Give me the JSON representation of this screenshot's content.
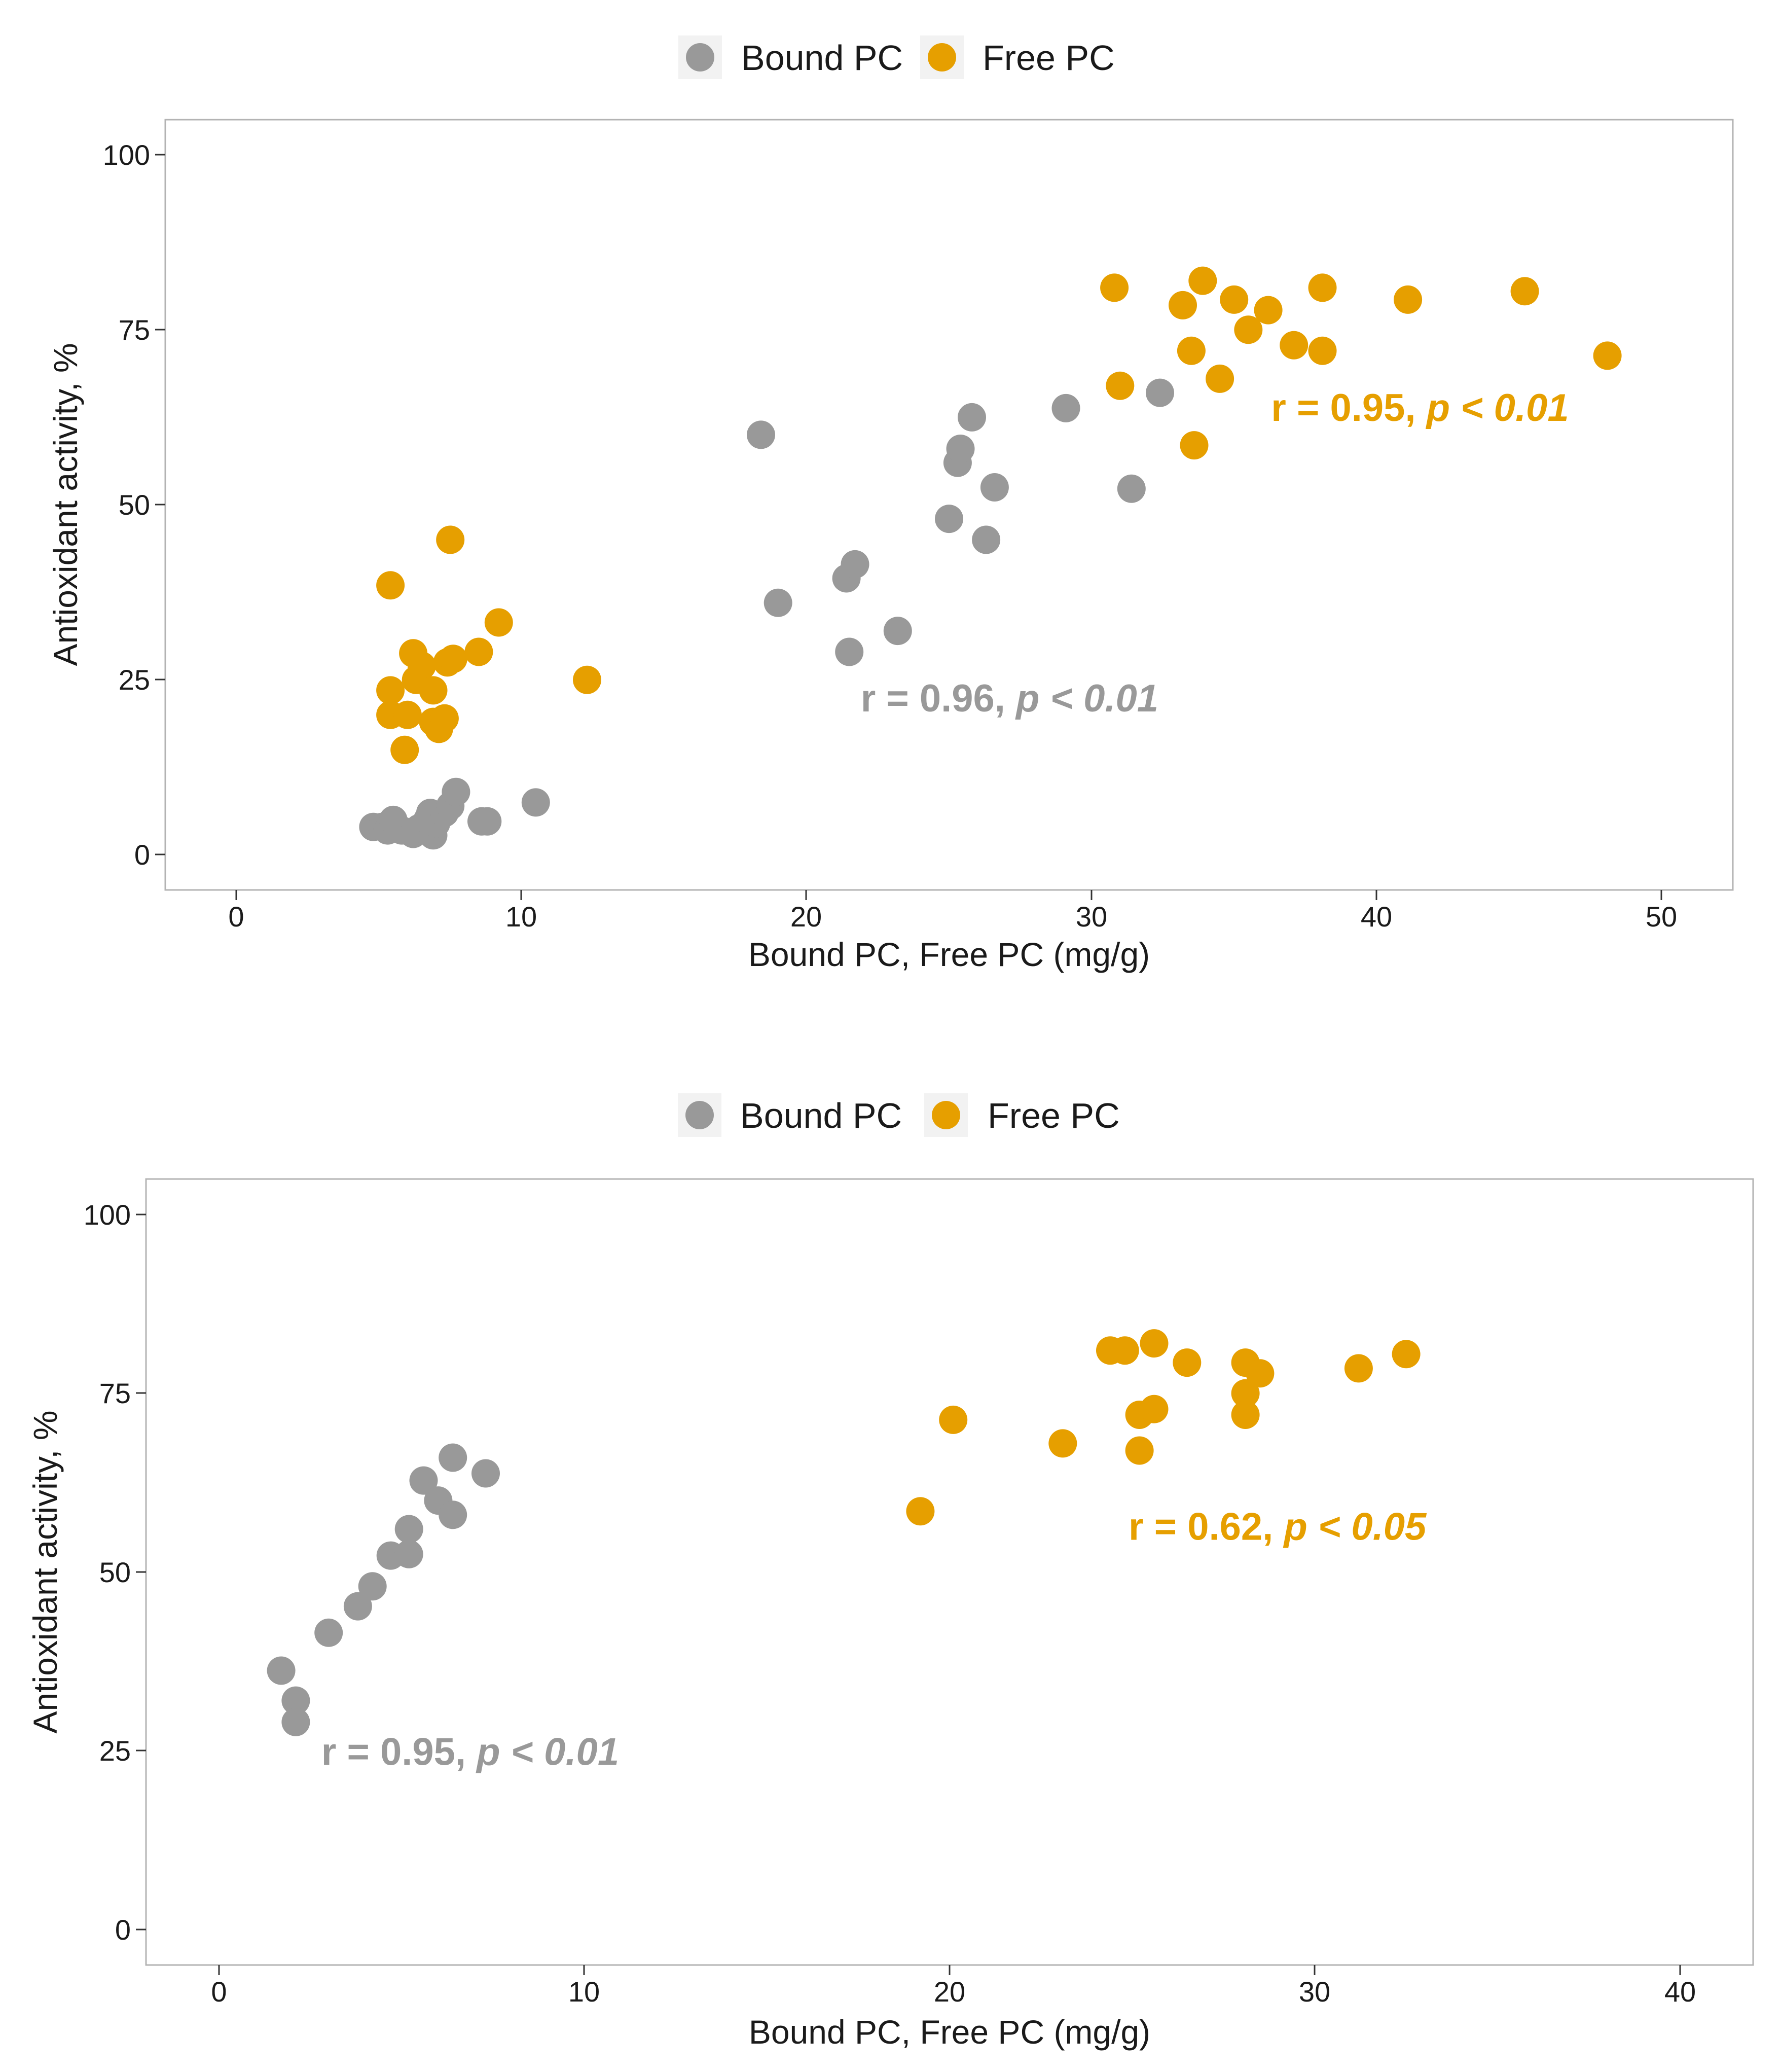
{
  "chart_data": [
    {
      "type": "scatter",
      "title": "",
      "xlabel": "Bound PC, Free PC (mg/g)",
      "ylabel": "Antioxidant activity, %",
      "xlim": [
        -2.5,
        52.5
      ],
      "ylim": [
        -5,
        105
      ],
      "x_ticks": [
        0,
        10,
        20,
        30,
        40,
        50
      ],
      "y_ticks": [
        0,
        25,
        50,
        75,
        100
      ],
      "grid": false,
      "legend": {
        "position": "top",
        "entries": [
          "Bound PC",
          "Free PC"
        ]
      },
      "series": [
        {
          "name": "Bound PC",
          "color": "#999999",
          "points": [
            [
              4.8,
              4.0
            ],
            [
              5.1,
              4.0
            ],
            [
              5.3,
              3.5
            ],
            [
              5.5,
              5.0
            ],
            [
              5.8,
              3.5
            ],
            [
              6.2,
              3.0
            ],
            [
              6.4,
              3.8
            ],
            [
              6.7,
              5.0
            ],
            [
              6.8,
              6.0
            ],
            [
              6.9,
              2.8
            ],
            [
              7.0,
              4.5
            ],
            [
              7.3,
              6.0
            ],
            [
              7.5,
              7.0
            ],
            [
              7.7,
              9.0
            ],
            [
              8.6,
              4.8
            ],
            [
              8.8,
              4.8
            ],
            [
              10.5,
              7.5
            ],
            [
              18.4,
              60.0
            ],
            [
              19.0,
              36.0
            ],
            [
              21.4,
              39.5
            ],
            [
              21.5,
              29.0
            ],
            [
              21.7,
              41.5
            ],
            [
              23.2,
              32.0
            ],
            [
              25.0,
              48.0
            ],
            [
              25.3,
              56.0
            ],
            [
              25.4,
              58.0
            ],
            [
              25.8,
              62.5
            ],
            [
              26.3,
              45.0
            ],
            [
              26.6,
              52.5
            ],
            [
              29.1,
              63.8
            ],
            [
              31.4,
              52.3
            ],
            [
              32.4,
              66.0
            ]
          ]
        },
        {
          "name": "Free PC",
          "color": "#E69F00",
          "points": [
            [
              5.4,
              38.5
            ],
            [
              5.4,
              23.5
            ],
            [
              5.4,
              20.0
            ],
            [
              6.0,
              20.0
            ],
            [
              6.2,
              28.8
            ],
            [
              6.3,
              25.0
            ],
            [
              6.5,
              27.0
            ],
            [
              6.9,
              23.5
            ],
            [
              6.9,
              19.0
            ],
            [
              7.1,
              18.0
            ],
            [
              7.3,
              19.5
            ],
            [
              7.4,
              27.5
            ],
            [
              7.6,
              28.0
            ],
            [
              7.5,
              45.0
            ],
            [
              5.9,
              15.0
            ],
            [
              8.5,
              29.0
            ],
            [
              9.2,
              33.2
            ],
            [
              12.3,
              25.0
            ],
            [
              30.8,
              81.0
            ],
            [
              31.0,
              67.0
            ],
            [
              33.2,
              78.5
            ],
            [
              33.5,
              72.0
            ],
            [
              33.9,
              82.0
            ],
            [
              33.6,
              58.5
            ],
            [
              34.5,
              68.0
            ],
            [
              35.0,
              79.3
            ],
            [
              35.5,
              75.0
            ],
            [
              36.2,
              77.8
            ],
            [
              37.1,
              72.8
            ],
            [
              38.1,
              81.0
            ],
            [
              38.1,
              72.0
            ],
            [
              41.1,
              79.3
            ],
            [
              45.2,
              80.5
            ],
            [
              48.1,
              71.3
            ]
          ]
        }
      ],
      "annotations": [
        {
          "text_main": "r = 0.95, ",
          "text_italic": "p < 0.01",
          "color": "#E69F00",
          "x": 36.3,
          "y": 62.0
        },
        {
          "text_main": "r = 0.96, ",
          "text_italic": "p < 0.01",
          "color": "#999999",
          "x": 21.9,
          "y": 20.5
        }
      ]
    },
    {
      "type": "scatter",
      "title": "",
      "xlabel": "Bound PC, Free PC (mg/g)",
      "ylabel": "Antioxidant activity, %",
      "xlim": [
        -2,
        42
      ],
      "ylim": [
        -5,
        105
      ],
      "x_ticks": [
        0,
        10,
        20,
        30,
        40
      ],
      "y_ticks": [
        0,
        25,
        50,
        75,
        100
      ],
      "grid": false,
      "legend": {
        "position": "top",
        "entries": [
          "Bound PC",
          "Free PC"
        ]
      },
      "series": [
        {
          "name": "Bound PC",
          "color": "#999999",
          "points": [
            [
              1.7,
              36.2
            ],
            [
              2.1,
              32.0
            ],
            [
              2.1,
              29.0
            ],
            [
              3.0,
              41.5
            ],
            [
              3.8,
              45.2
            ],
            [
              4.2,
              48.0
            ],
            [
              4.7,
              52.3
            ],
            [
              5.2,
              52.5
            ],
            [
              5.2,
              56.0
            ],
            [
              5.6,
              62.8
            ],
            [
              6.0,
              60.0
            ],
            [
              6.4,
              58.0
            ],
            [
              6.4,
              66.0
            ],
            [
              7.3,
              63.8
            ]
          ]
        },
        {
          "name": "Free PC",
          "color": "#E69F00",
          "points": [
            [
              19.2,
              58.5
            ],
            [
              20.1,
              71.3
            ],
            [
              23.1,
              68.0
            ],
            [
              24.4,
              81.0
            ],
            [
              24.8,
              81.0
            ],
            [
              25.2,
              72.0
            ],
            [
              25.2,
              67.0
            ],
            [
              25.6,
              72.8
            ],
            [
              25.6,
              82.0
            ],
            [
              26.5,
              79.3
            ],
            [
              28.1,
              79.3
            ],
            [
              28.1,
              75.0
            ],
            [
              28.1,
              72.0
            ],
            [
              28.5,
              77.8
            ],
            [
              31.2,
              78.5
            ],
            [
              32.5,
              80.5
            ]
          ]
        }
      ],
      "annotations": [
        {
          "text_main": "r = 0.62, ",
          "text_italic": "p < 0.05",
          "color": "#E69F00",
          "x": 24.9,
          "y": 54.5
        },
        {
          "text_main": "r = 0.95, ",
          "text_italic": "p < 0.01",
          "color": "#999999",
          "x": 2.8,
          "y": 23.0
        }
      ]
    }
  ]
}
